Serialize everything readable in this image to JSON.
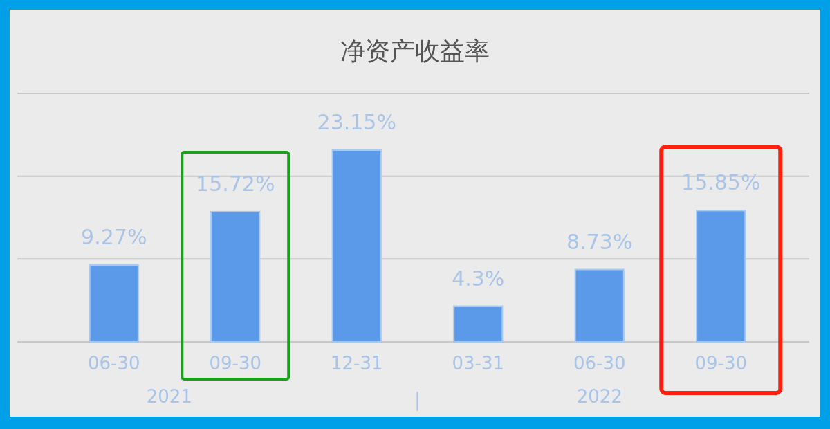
{
  "chart_data": {
    "type": "bar",
    "title": "净资产收益率",
    "categories": [
      "06-30",
      "09-30",
      "12-31",
      "03-31",
      "06-30",
      "09-30"
    ],
    "values": [
      9.27,
      15.72,
      23.15,
      4.3,
      8.73,
      15.85
    ],
    "value_labels": [
      "9.27%",
      "15.72%",
      "23.15%",
      "4.3%",
      "8.73%",
      "15.85%"
    ],
    "color": "#5b9ae8",
    "ylim": [
      0,
      30
    ],
    "yticks": [
      {
        "value": 0,
        "label": null
      },
      {
        "value": 10,
        "label": null
      },
      {
        "value": 20,
        "label": null
      },
      {
        "value": 30,
        "label": null
      }
    ],
    "grid": "y",
    "tick_labels": "x",
    "annotations": [
      "2021",
      "2022"
    ]
  }
}
